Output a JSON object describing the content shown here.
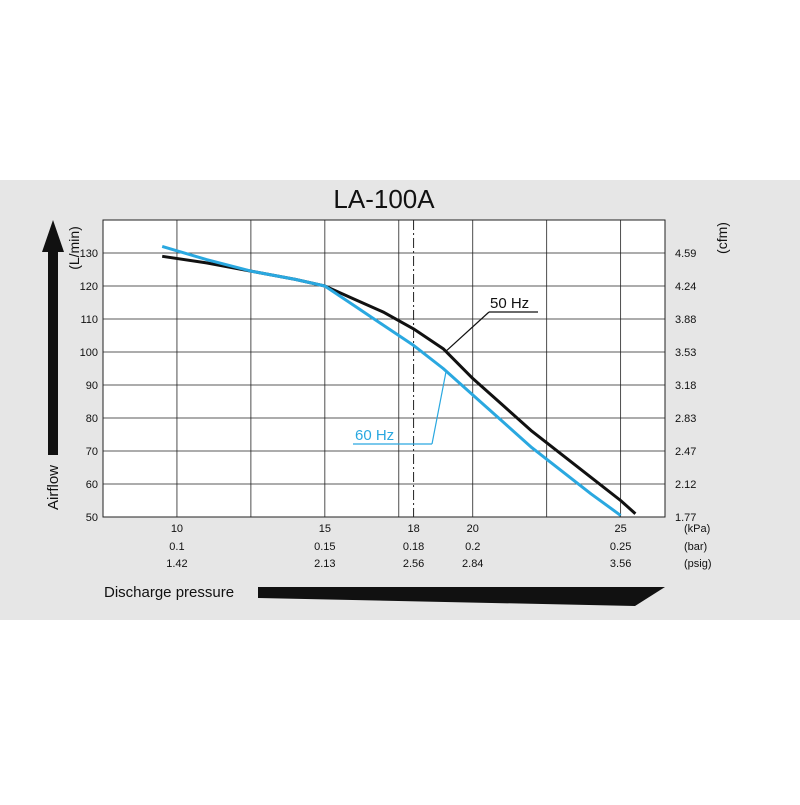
{
  "chart_data": {
    "type": "line",
    "title": "LA-100A",
    "ylabel_left": "Airflow",
    "ylabel_left_unit": "(L/min)",
    "ylabel_right_unit": "(cfm)",
    "xlabel": "Discharge pressure",
    "ylim": [
      50,
      140
    ],
    "xlim": [
      7.5,
      26.5
    ],
    "y_ticks_left": [
      "50",
      "60",
      "70",
      "80",
      "90",
      "100",
      "110",
      "120",
      "130"
    ],
    "y_ticks_right": [
      "1.77",
      "2.12",
      "2.47",
      "2.83",
      "3.18",
      "3.53",
      "3.88",
      "4.24",
      "4.59"
    ],
    "x_ticks": [
      {
        "kpa": "10",
        "bar": "0.1",
        "psig": "1.42"
      },
      {
        "kpa": "15",
        "bar": "0.15",
        "psig": "2.13"
      },
      {
        "kpa": "18",
        "bar": "0.18",
        "psig": "2.56"
      },
      {
        "kpa": "20",
        "bar": "0.2",
        "psig": "2.84"
      },
      {
        "kpa": "25",
        "bar": "0.25",
        "psig": "3.56"
      }
    ],
    "x_unit_labels": [
      "(kPa)",
      "(bar)",
      "(psig)"
    ],
    "reference_line_x": 18,
    "series": [
      {
        "name": "50 Hz",
        "color": "#111111",
        "points": [
          [
            9.5,
            129
          ],
          [
            11,
            127
          ],
          [
            12.5,
            124.5
          ],
          [
            14,
            122
          ],
          [
            15,
            120
          ],
          [
            16,
            116
          ],
          [
            17,
            112
          ],
          [
            18,
            107
          ],
          [
            19,
            101
          ],
          [
            20,
            92
          ],
          [
            21,
            84
          ],
          [
            22,
            76
          ],
          [
            23,
            69
          ],
          [
            24,
            62
          ],
          [
            25,
            55
          ],
          [
            25.5,
            51
          ]
        ]
      },
      {
        "name": "60 Hz",
        "color": "#2aa8e0",
        "points": [
          [
            9.5,
            132
          ],
          [
            11,
            128
          ],
          [
            12.5,
            124.5
          ],
          [
            14,
            122
          ],
          [
            15,
            120
          ],
          [
            16,
            114
          ],
          [
            17,
            108
          ],
          [
            18,
            102
          ],
          [
            19,
            95
          ],
          [
            20,
            87
          ],
          [
            21,
            79
          ],
          [
            22,
            71
          ],
          [
            23,
            64
          ],
          [
            24,
            57
          ],
          [
            25,
            50.5
          ]
        ]
      }
    ]
  }
}
